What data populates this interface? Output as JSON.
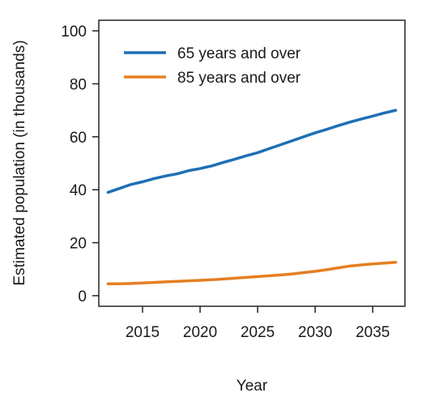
{
  "chart_data": {
    "type": "line",
    "title": "",
    "xlabel": "Year",
    "ylabel": "Estimated population (in thousands)",
    "xlim": [
      2011.2,
      2037.8
    ],
    "ylim": [
      -4,
      104
    ],
    "x_ticks": [
      2015,
      2020,
      2025,
      2030,
      2035
    ],
    "y_ticks": [
      0,
      20,
      40,
      60,
      80,
      100
    ],
    "grid": false,
    "legend_position": "top-left",
    "x": [
      2012,
      2013,
      2014,
      2015,
      2016,
      2017,
      2018,
      2019,
      2020,
      2021,
      2022,
      2023,
      2024,
      2025,
      2026,
      2027,
      2028,
      2029,
      2030,
      2031,
      2032,
      2033,
      2034,
      2035,
      2036,
      2037
    ],
    "series": [
      {
        "name": "65 years and over",
        "color": "#1f6fb5",
        "values": [
          39.0,
          40.5,
          42.0,
          43.0,
          44.2,
          45.2,
          46.0,
          47.2,
          48.0,
          49.0,
          50.3,
          51.5,
          52.8,
          54.0,
          55.5,
          57.0,
          58.5,
          60.0,
          61.5,
          62.8,
          64.2,
          65.5,
          66.7,
          67.8,
          69.0,
          70.0
        ]
      },
      {
        "name": "85 years and over",
        "color": "#e67e22",
        "values": [
          4.5,
          4.5,
          4.6,
          4.8,
          5.0,
          5.2,
          5.4,
          5.6,
          5.8,
          6.0,
          6.3,
          6.6,
          6.9,
          7.2,
          7.5,
          7.8,
          8.2,
          8.7,
          9.2,
          9.8,
          10.5,
          11.2,
          11.6,
          12.0,
          12.3,
          12.6
        ]
      }
    ]
  }
}
